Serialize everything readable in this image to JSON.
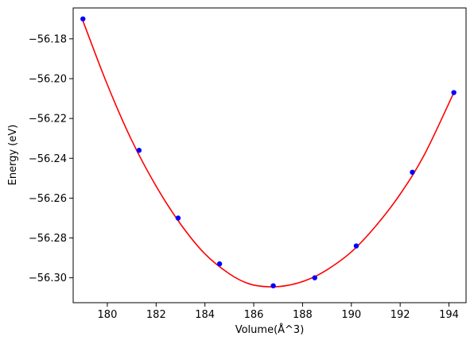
{
  "chart_data": {
    "type": "scatter",
    "xlabel": "Volume(Å^3)",
    "ylabel": "Energy (eV)",
    "xlim": [
      178.6,
      194.7
    ],
    "ylim": [
      -56.3125,
      -56.1645
    ],
    "xticks": [
      180,
      182,
      184,
      186,
      188,
      190,
      192,
      194
    ],
    "yticks": [
      -56.18,
      -56.2,
      -56.22,
      -56.24,
      -56.26,
      -56.28,
      -56.3
    ],
    "grid": false,
    "legend": "none",
    "series": [
      {
        "kind": "points",
        "color": "#0000ff",
        "x": [
          179.0,
          181.3,
          182.9,
          184.6,
          186.8,
          188.5,
          190.2,
          192.5,
          194.2
        ],
        "y": [
          -56.17,
          -56.236,
          -56.27,
          -56.293,
          -56.304,
          -56.3,
          -56.284,
          -56.247,
          -56.207
        ]
      },
      {
        "kind": "fit-curve",
        "color": "#ff0000",
        "x": [
          179.0,
          180.0,
          181.0,
          182.0,
          183.0,
          184.0,
          185.0,
          185.8,
          186.6,
          187.4,
          188.2,
          189.0,
          190.0,
          191.0,
          192.0,
          193.0,
          194.2
        ],
        "y": [
          -56.171,
          -56.203,
          -56.231,
          -56.254,
          -56.273,
          -56.288,
          -56.298,
          -56.303,
          -56.3045,
          -56.3038,
          -56.301,
          -56.296,
          -56.287,
          -56.274,
          -56.258,
          -56.238,
          -56.207
        ]
      }
    ]
  }
}
